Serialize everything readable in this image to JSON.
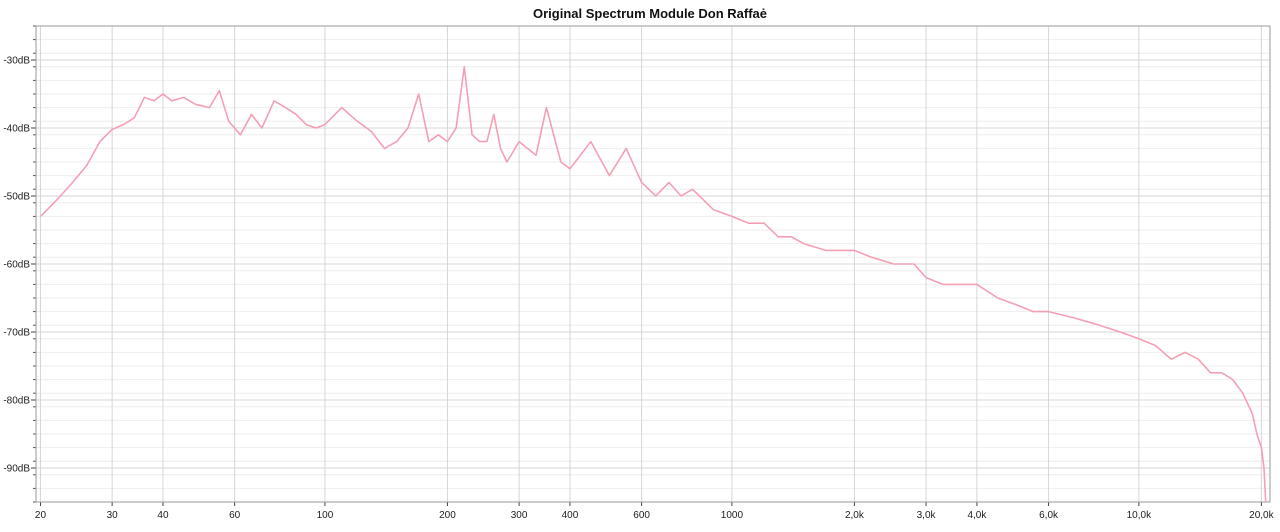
{
  "chart_data": {
    "type": "line",
    "title": "Original Spectrum Module Don Raffaė",
    "xlabel": "",
    "ylabel": "",
    "x_scale": "log",
    "xlim": [
      19.5,
      21000
    ],
    "ylim": [
      -95,
      -25
    ],
    "grid": true,
    "legend": "none",
    "line_color": "#f4a0b4",
    "x_ticks": [
      {
        "value": 20,
        "label": "20"
      },
      {
        "value": 30,
        "label": "30"
      },
      {
        "value": 40,
        "label": "40"
      },
      {
        "value": 60,
        "label": "60"
      },
      {
        "value": 100,
        "label": "100"
      },
      {
        "value": 200,
        "label": "200"
      },
      {
        "value": 300,
        "label": "300"
      },
      {
        "value": 400,
        "label": "400"
      },
      {
        "value": 600,
        "label": "600"
      },
      {
        "value": 1000,
        "label": "1000"
      },
      {
        "value": 2000,
        "label": "2,0k"
      },
      {
        "value": 3000,
        "label": "3,0k"
      },
      {
        "value": 4000,
        "label": "4,0k"
      },
      {
        "value": 6000,
        "label": "6,0k"
      },
      {
        "value": 10000,
        "label": "10,0k"
      },
      {
        "value": 20000,
        "label": "20,0k"
      }
    ],
    "y_ticks": [
      {
        "value": -30,
        "label": "-30dB"
      },
      {
        "value": -40,
        "label": "-40dB"
      },
      {
        "value": -50,
        "label": "-50dB"
      },
      {
        "value": -60,
        "label": "-60dB"
      },
      {
        "value": -70,
        "label": "-70dB"
      },
      {
        "value": -80,
        "label": "-80dB"
      },
      {
        "value": -90,
        "label": "-90dB"
      }
    ],
    "series": [
      {
        "x": [
          20,
          22,
          24,
          26,
          28,
          30,
          32,
          34,
          36,
          38,
          40,
          42,
          45,
          48,
          52,
          55,
          58,
          62,
          66,
          70,
          75,
          80,
          85,
          90,
          95,
          100,
          110,
          120,
          130,
          140,
          150,
          160,
          170,
          180,
          190,
          200,
          210,
          220,
          230,
          240,
          250,
          260,
          270,
          280,
          300,
          330,
          350,
          380,
          400,
          450,
          500,
          550,
          600,
          650,
          700,
          750,
          800,
          900,
          1000,
          1100,
          1200,
          1300,
          1400,
          1500,
          1700,
          2000,
          2200,
          2500,
          2800,
          3000,
          3300,
          3600,
          4000,
          4500,
          5000,
          5500,
          6000,
          7000,
          8000,
          9000,
          10000,
          11000,
          12000,
          13000,
          14000,
          15000,
          16000,
          17000,
          18000,
          19000,
          19500,
          20000,
          20300,
          20500
        ],
        "y": [
          -53,
          -50.5,
          -48,
          -45.5,
          -42,
          -40.2,
          -39.5,
          -38.5,
          -35.5,
          -36,
          -35,
          -36,
          -35.5,
          -36.5,
          -37,
          -34.5,
          -39,
          -41,
          -38,
          -40,
          -36,
          -37,
          -38,
          -39.5,
          -40,
          -39.5,
          -37,
          -39,
          -40.5,
          -43,
          -42,
          -40,
          -35,
          -42,
          -41,
          -42,
          -40,
          -31,
          -41,
          -42,
          -42,
          -38,
          -43,
          -45,
          -42,
          -44,
          -37,
          -45,
          -46,
          -42,
          -47,
          -43,
          -48,
          -50,
          -48,
          -50,
          -49,
          -52,
          -53,
          -54,
          -54,
          -56,
          -56,
          -57,
          -58,
          -58,
          -59,
          -60,
          -60,
          -62,
          -63,
          -63,
          -63,
          -65,
          -66,
          -67,
          -67,
          -68,
          -69,
          -70,
          -71,
          -72,
          -74,
          -73,
          -74,
          -76,
          -76,
          -77,
          -79,
          -82,
          -85,
          -87,
          -90,
          -95
        ]
      }
    ]
  }
}
